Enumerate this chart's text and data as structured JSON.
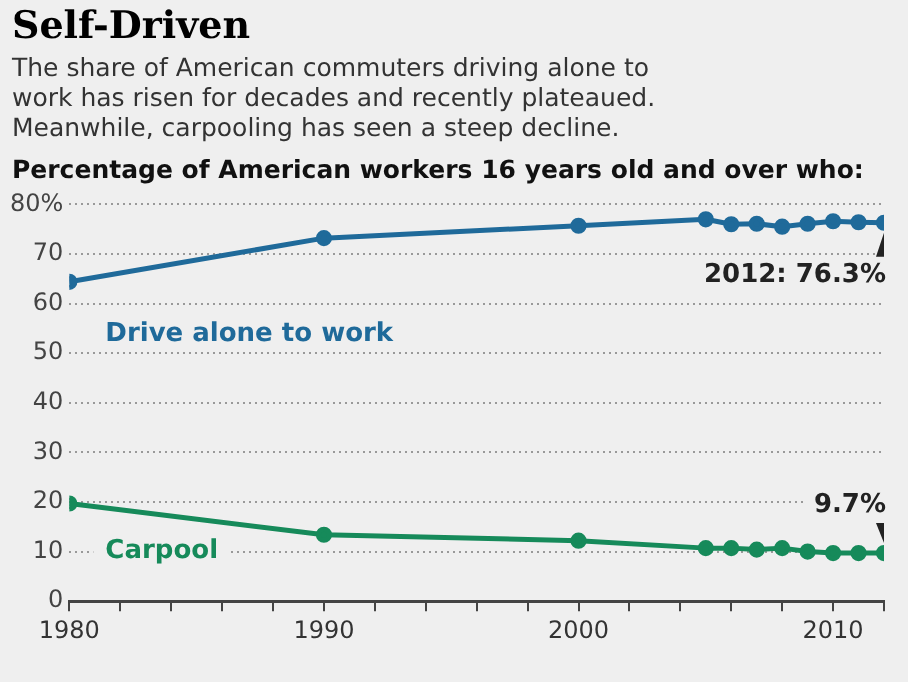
{
  "chart_data": {
    "type": "line",
    "title": "Self-Driven",
    "subtitle": "The share of American commuters driving alone to work has risen for decades and recently plateaued. Meanwhile, carpooling has seen a steep decline.",
    "ylabel": "Percentage of American workers 16 years old and over who:",
    "x": [
      1980,
      1990,
      2000,
      2005,
      2006,
      2007,
      2008,
      2009,
      2010,
      2011,
      2012
    ],
    "series": [
      {
        "name": "Drive alone to work",
        "color": "#1f6a9a",
        "values": [
          64.4,
          73.2,
          75.7,
          77.0,
          76.0,
          76.1,
          75.5,
          76.1,
          76.6,
          76.4,
          76.3
        ]
      },
      {
        "name": "Carpool",
        "color": "#168a5a",
        "values": [
          19.7,
          13.4,
          12.2,
          10.7,
          10.7,
          10.4,
          10.7,
          10.0,
          9.7,
          9.7,
          9.7
        ]
      }
    ],
    "annotations": [
      {
        "text": "2012: 76.3%",
        "x": 2012,
        "y": 76.3
      },
      {
        "text": "9.7%",
        "x": 2012,
        "y": 9.7
      }
    ],
    "xlim": [
      1980,
      2012
    ],
    "xticks": [
      1980,
      {
        "value": 1982,
        "label": null
      },
      {
        "value": 1984,
        "label": null
      },
      {
        "value": 1986,
        "label": null
      },
      {
        "value": 1988,
        "label": null
      },
      1990,
      {
        "value": 1992,
        "label": null
      },
      {
        "value": 1994,
        "label": null
      },
      {
        "value": 1996,
        "label": null
      },
      {
        "value": 1998,
        "label": null
      },
      2000,
      {
        "value": 2002,
        "label": null
      },
      {
        "value": 2004,
        "label": null
      },
      {
        "value": 2006,
        "label": null
      },
      {
        "value": 2008,
        "label": null
      },
      2010,
      {
        "value": 2012,
        "label": null
      }
    ],
    "ylim": [
      0,
      80
    ],
    "yticks": [
      0,
      10,
      20,
      30,
      40,
      50,
      60,
      70,
      {
        "value": 80,
        "label": "80%"
      }
    ],
    "grid": "y",
    "marker": "circle",
    "line_style": "solid",
    "legend": false
  }
}
